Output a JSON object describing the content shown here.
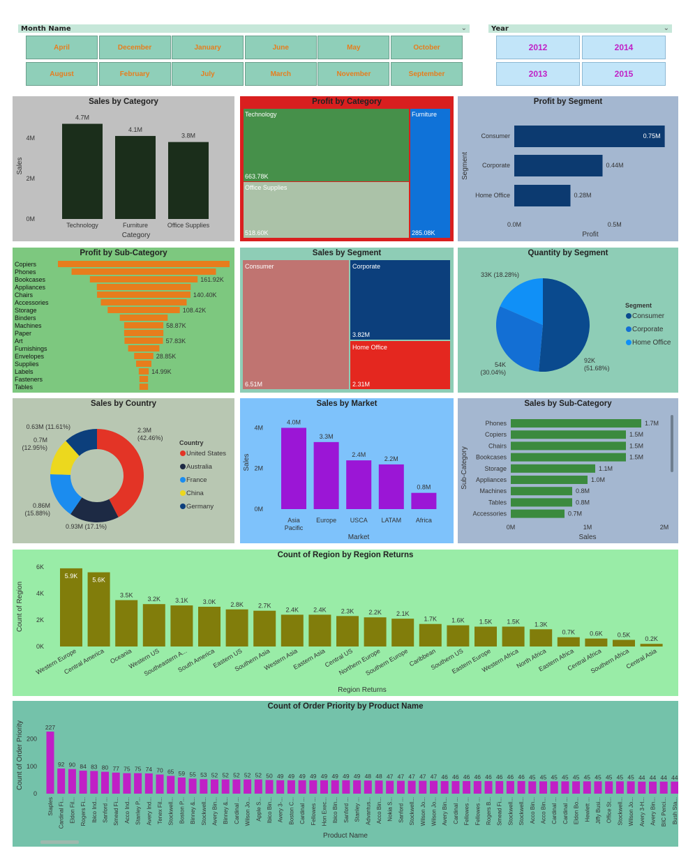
{
  "slicers": {
    "month": {
      "header": "Month Name",
      "items": [
        "April",
        "December",
        "January",
        "June",
        "May",
        "October",
        "August",
        "February",
        "July",
        "March",
        "November",
        "September"
      ]
    },
    "year": {
      "header": "Year",
      "items": [
        "2012",
        "2014",
        "2013",
        "2015"
      ]
    }
  },
  "colors": {
    "orange": "#e77d1d",
    "magenta": "#c01fc6",
    "darkgreen": "#1b2e1b",
    "navy": "#0c3a70",
    "purple": "#9b16d6",
    "olive": "#817d0b"
  },
  "chart_data": [
    {
      "id": "sales_by_category",
      "type": "bar",
      "title": "Sales by Category",
      "xlabel": "Category",
      "ylabel": "Sales",
      "categories": [
        "Technology",
        "Furniture",
        "Office Supplies"
      ],
      "values": [
        4.7,
        4.1,
        3.8
      ],
      "labels": [
        "4.7M",
        "4.1M",
        "3.8M"
      ],
      "ticks": [
        "0M",
        "2M",
        "4M"
      ],
      "ylim": [
        0,
        5.2
      ]
    },
    {
      "id": "profit_by_category",
      "type": "treemap",
      "title": "Profit by Category",
      "items": [
        {
          "name": "Technology",
          "value": "663.78K"
        },
        {
          "name": "Office Supplies",
          "value": "518.60K"
        },
        {
          "name": "Furniture",
          "value": "285.08K"
        }
      ]
    },
    {
      "id": "profit_by_segment",
      "type": "bar",
      "orientation": "horizontal",
      "title": "Profit by Segment",
      "xlabel": "Profit",
      "ylabel": "Segment",
      "categories": [
        "Consumer",
        "Corporate",
        "Home Office"
      ],
      "values": [
        0.75,
        0.44,
        0.28
      ],
      "labels": [
        "0.75M",
        "0.44M",
        "0.28M"
      ],
      "ticks": [
        "0.0M",
        "0.5M"
      ],
      "xlim": [
        0,
        0.8
      ]
    },
    {
      "id": "profit_by_subcategory",
      "type": "funnel",
      "title": "Profit by Sub-Category",
      "categories": [
        "Copiers",
        "Phones",
        "Bookcases",
        "Appliances",
        "Chairs",
        "Accessories",
        "Storage",
        "Binders",
        "Machines",
        "Paper",
        "Art",
        "Furnishings",
        "Envelopes",
        "Supplies",
        "Labels",
        "Fasteners",
        "Tables"
      ],
      "values": [
        258,
        217,
        161.92,
        141,
        140.4,
        129,
        108.42,
        72,
        58.87,
        59,
        57.83,
        47,
        28.85,
        23,
        14.99,
        13,
        13
      ],
      "labels": [
        "",
        "",
        "161.92K",
        "",
        "140.40K",
        "",
        "108.42K",
        "",
        "58.87K",
        "",
        "57.83K",
        "",
        "28.85K",
        "",
        "14.99K",
        "",
        ""
      ]
    },
    {
      "id": "sales_by_segment",
      "type": "treemap",
      "title": "Sales by Segment",
      "items": [
        {
          "name": "Consumer",
          "value": "6.51M"
        },
        {
          "name": "Corporate",
          "value": "3.82M"
        },
        {
          "name": "Home Office",
          "value": "2.31M"
        }
      ]
    },
    {
      "id": "quantity_by_segment",
      "type": "pie",
      "title": "Quantity by Segment",
      "legend_title": "Segment",
      "series": [
        {
          "name": "Consumer",
          "value": 92,
          "label": "92K",
          "pct": "(51.68%)"
        },
        {
          "name": "Corporate",
          "value": 54,
          "label": "54K",
          "pct": "(30.04%)"
        },
        {
          "name": "Home Office",
          "value": 33,
          "label": "33K (18.28%)",
          "pct": ""
        }
      ]
    },
    {
      "id": "sales_by_country",
      "type": "donut",
      "title": "Sales by Country",
      "legend_title": "Country",
      "series": [
        {
          "name": "United States",
          "value": 2.3,
          "label": "2.3M",
          "pct": "(42.46%)"
        },
        {
          "name": "Australia",
          "value": 0.93,
          "label": "0.93M (17.1%)",
          "pct": ""
        },
        {
          "name": "France",
          "value": 0.86,
          "label": "0.86M",
          "pct": "(15.88%)"
        },
        {
          "name": "China",
          "value": 0.7,
          "label": "0.7M",
          "pct": "(12.95%)"
        },
        {
          "name": "Germany",
          "value": 0.63,
          "label": "0.63M (11.61%)",
          "pct": ""
        }
      ]
    },
    {
      "id": "sales_by_market",
      "type": "bar",
      "title": "Sales by Market",
      "xlabel": "Market",
      "ylabel": "Sales",
      "categories": [
        "Asia Pacific",
        "Europe",
        "USCA",
        "LATAM",
        "Africa"
      ],
      "values": [
        4.0,
        3.3,
        2.4,
        2.2,
        0.8
      ],
      "labels": [
        "4.0M",
        "3.3M",
        "2.4M",
        "2.2M",
        "0.8M"
      ],
      "ticks": [
        "0M",
        "2M",
        "4M"
      ],
      "ylim": [
        0,
        4.6
      ]
    },
    {
      "id": "sales_by_subcategory",
      "type": "bar",
      "orientation": "horizontal",
      "title": "Sales by Sub-Category",
      "xlabel": "Sales",
      "ylabel": "Sub-Category",
      "categories": [
        "Phones",
        "Copiers",
        "Chairs",
        "Bookcases",
        "Storage",
        "Appliances",
        "Machines",
        "Tables",
        "Accessories"
      ],
      "values": [
        1.7,
        1.5,
        1.5,
        1.5,
        1.1,
        1.0,
        0.8,
        0.8,
        0.7
      ],
      "labels": [
        "1.7M",
        "1.5M",
        "1.5M",
        "1.5M",
        "1.1M",
        "1.0M",
        "0.8M",
        "0.8M",
        "0.7M"
      ],
      "ticks": [
        "0M",
        "1M",
        "2M"
      ],
      "xlim": [
        0,
        2
      ]
    },
    {
      "id": "region_returns",
      "type": "bar",
      "title": "Count of Region by Region Returns",
      "xlabel": "Region Returns",
      "ylabel": "Count of Region",
      "categories": [
        "Western Europe",
        "Central America",
        "Oceania",
        "Western US",
        "Southeastern A...",
        "South America",
        "Eastern US",
        "Southern Asia",
        "Western Asia",
        "Eastern Asia",
        "Central US",
        "Northern Europe",
        "Southern Europe",
        "Caribbean",
        "Southern US",
        "Eastern Europe",
        "Western Africa",
        "North Africa",
        "Eastern Africa",
        "Central Africa",
        "Southern Africa",
        "Central Asia"
      ],
      "values": [
        5.9,
        5.6,
        3.5,
        3.2,
        3.1,
        3.0,
        2.8,
        2.7,
        2.4,
        2.4,
        2.3,
        2.2,
        2.1,
        1.7,
        1.6,
        1.5,
        1.5,
        1.3,
        0.7,
        0.6,
        0.5,
        0.2
      ],
      "labels": [
        "5.9K",
        "5.6K",
        "3.5K",
        "3.2K",
        "3.1K",
        "3.0K",
        "2.8K",
        "2.7K",
        "2.4K",
        "2.4K",
        "2.3K",
        "2.2K",
        "2.1K",
        "1.7K",
        "1.6K",
        "1.5K",
        "1.5K",
        "1.3K",
        "0.7K",
        "0.6K",
        "0.5K",
        "0.2K"
      ],
      "ticks": [
        "0K",
        "2K",
        "4K",
        "6K"
      ],
      "ylim": [
        0,
        6
      ]
    },
    {
      "id": "order_priority_by_product",
      "type": "bar",
      "title": "Count of Order Priority by Product Name",
      "xlabel": "Product Name",
      "ylabel": "Count of Order Priority",
      "categories": [
        "Staples",
        "Cardinal Fi...",
        "Eldon Fil...",
        "Rogers Fi...",
        "Ibico Ind...",
        "Sanford ...",
        "Smead Fi...",
        "Acco Ind...",
        "Stanley P...",
        "Avery Ind...",
        "Tenex Fil...",
        "Stockwell...",
        "Boston P...",
        "Binney &...",
        "Stockwell...",
        "Avery Bin...",
        "Binney &...",
        "Cardinal ...",
        "Wilson Jo...",
        "Apple S...",
        "Ibico Bin...",
        "Avery 3-...",
        "Boston C...",
        "Cardinal ...",
        "Fellowes ...",
        "Hon Exec...",
        "Ibico Bin...",
        "Sanford ...",
        "Stanley ...",
        "Advantus...",
        "Acco Bin...",
        "Nokia S...",
        "Sanford ...",
        "Stockwell...",
        "Wilson Jo...",
        "Wilson Jo...",
        "Avery Bin...",
        "Cardinal ...",
        "Fellowes ...",
        "Fellowes ...",
        "Rogers B...",
        "Smead Fi...",
        "Stockwell...",
        "Stockwell...",
        "Acco Bin...",
        "Acco Bin...",
        "Cardinal ...",
        "Cardinal ...",
        "Eldon Bo...",
        "Hewlett ...",
        "Jiffy Busi...",
        "Office St...",
        "Stockwell...",
        "Wilson Jo...",
        "Avery 3-H...",
        "Avery Bin...",
        "BIC Penci...",
        "Bush Sta..."
      ],
      "values": [
        227,
        92,
        90,
        84,
        83,
        80,
        77,
        75,
        75,
        74,
        70,
        65,
        59,
        55,
        53,
        52,
        52,
        52,
        52,
        52,
        50,
        49,
        49,
        49,
        49,
        49,
        49,
        49,
        49,
        48,
        48,
        47,
        47,
        47,
        47,
        47,
        46,
        46,
        46,
        46,
        46,
        46,
        46,
        46,
        45,
        45,
        45,
        45,
        45,
        45,
        45,
        45,
        45,
        45,
        44,
        44,
        44,
        44
      ],
      "ticks": [
        "0",
        "100",
        "200"
      ],
      "ylim": [
        0,
        250
      ]
    }
  ]
}
